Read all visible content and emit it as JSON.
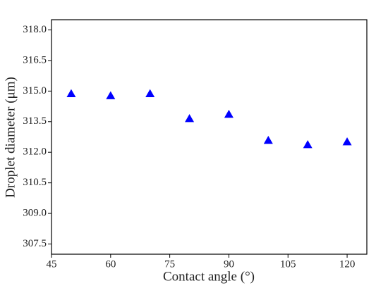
{
  "chart_data": {
    "type": "scatter",
    "x_label": "Contact angle (°)",
    "y_label": "Droplet diameter (μm)",
    "x": [
      50,
      60,
      70,
      80,
      90,
      100,
      110,
      120
    ],
    "series": [
      {
        "color": "#0000ff",
        "marker": "triangle",
        "values": [
          314.87,
          314.77,
          314.87,
          313.65,
          313.86,
          312.58,
          312.37,
          312.51
        ]
      }
    ],
    "xlim": [
      45,
      125
    ],
    "xticks": [
      45,
      60,
      75,
      90,
      105,
      120
    ],
    "ylim": [
      307,
      318.5
    ],
    "yticks": [
      {
        "value": 307.5,
        "label": "307.5"
      },
      {
        "value": 309,
        "label": "309.0"
      },
      {
        "value": 310.5,
        "label": "310.5"
      },
      {
        "value": 312,
        "label": "312.0"
      },
      {
        "value": 313.5,
        "label": "313.5"
      },
      {
        "value": 315,
        "label": "315.0"
      },
      {
        "value": 316.5,
        "label": "316.5"
      },
      {
        "value": 318,
        "label": "318.0"
      }
    ]
  }
}
